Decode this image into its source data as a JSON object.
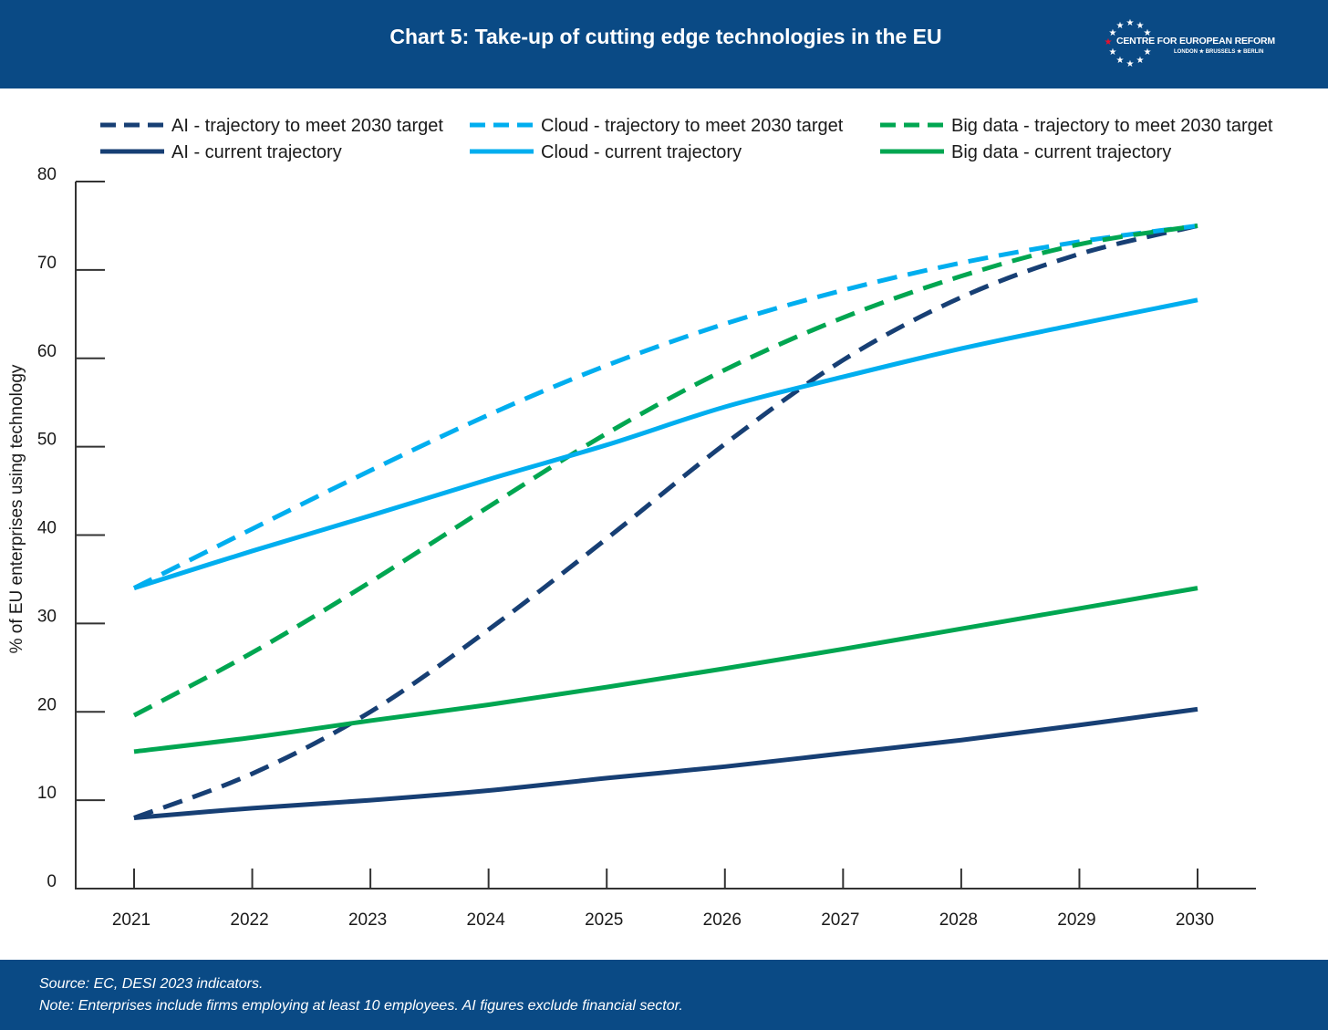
{
  "header": {
    "title": "Chart 5: Take-up of cutting edge technologies in the EU"
  },
  "logo": {
    "name": "CENTRE FOR EUROPEAN REFORM",
    "cities": "LONDON ★ BRUSSELS ★ BERLIN",
    "star_color": "#e8112d"
  },
  "footer": {
    "source": "Source: EC, DESI 2023 indicators.",
    "note": "Note: Enterprises include firms employing at least 10 employees. AI figures exclude financial sector."
  },
  "chart_data": {
    "type": "line",
    "title": "Chart 5: Take-up of cutting edge technologies in the EU",
    "xlabel": "",
    "ylabel": "% of EU enterprises using technology",
    "ylim": [
      0,
      80
    ],
    "yticks": [
      0,
      10,
      20,
      30,
      40,
      50,
      60,
      70,
      80
    ],
    "x": [
      "2021",
      "2022",
      "2023",
      "2024",
      "2025",
      "2026",
      "2027",
      "2028",
      "2029",
      "2030"
    ],
    "grid": false,
    "legend_position": "top",
    "series": [
      {
        "name": "AI - trajectory to meet 2030 target",
        "color": "#173f74",
        "dashed": true,
        "values": [
          8,
          13,
          20,
          29.3,
          39.6,
          50.3,
          59.8,
          66.9,
          71.8,
          75
        ]
      },
      {
        "name": "Cloud - trajectory to meet 2030 target",
        "color": "#00aeef",
        "dashed": true,
        "values": [
          34,
          40.7,
          47.3,
          53.6,
          59.2,
          63.9,
          67.7,
          70.8,
          73.2,
          75
        ]
      },
      {
        "name": "Big data - trajectory to meet 2030 target",
        "color": "#00a651",
        "dashed": true,
        "values": [
          19.6,
          26.7,
          34.7,
          43.2,
          51.5,
          58.7,
          64.6,
          69.3,
          72.9,
          75
        ]
      },
      {
        "name": "AI - current trajectory",
        "color": "#173f74",
        "dashed": false,
        "values": [
          8,
          9.1,
          10,
          11.1,
          12.5,
          13.8,
          15.3,
          16.8,
          18.5,
          20.3
        ]
      },
      {
        "name": "Cloud - current trajectory",
        "color": "#00aeef",
        "dashed": false,
        "values": [
          34,
          38.2,
          42.2,
          46.3,
          50.2,
          54.5,
          57.9,
          61.1,
          63.9,
          66.6
        ]
      },
      {
        "name": "Big data - current trajectory",
        "color": "#00a651",
        "dashed": false,
        "values": [
          15.5,
          17.1,
          19,
          20.8,
          22.8,
          24.9,
          27.1,
          29.4,
          31.7,
          34
        ]
      }
    ]
  }
}
